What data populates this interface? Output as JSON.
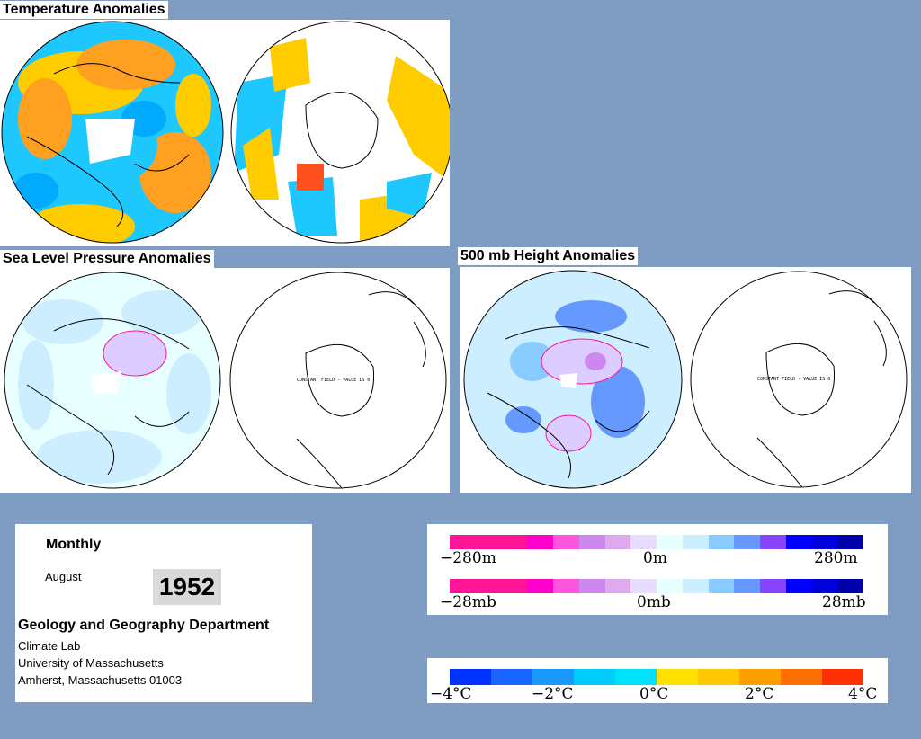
{
  "titles": {
    "temperature": "Temperature Anomalies",
    "slp": "Sea Level Pressure Anomalies",
    "height500": "500 mb Height Anomalies"
  },
  "map_notes": {
    "slp_south": "CONSTANT FIELD - VALUE IS 0",
    "height_south": "CONSTANT FIELD - VALUE IS 0"
  },
  "info": {
    "period": "Monthly",
    "month": "August",
    "year": "1952",
    "department": "Geology and Geography Department",
    "lab": "Climate Lab",
    "university": "University of Massachusetts",
    "address": "Amherst, Massachusetts 01003"
  },
  "legend_height": {
    "labels": [
      "−280m",
      "0m",
      "280m"
    ],
    "colors": [
      "#ff1493",
      "#ff1493",
      "#ff1493",
      "#ff00cc",
      "#ff55dd",
      "#cc88ee",
      "#ddaaee",
      "#e6ddff",
      "#e8ffff",
      "#cceeff",
      "#88ccff",
      "#6699ff",
      "#8844ff",
      "#0000ff",
      "#0000dd",
      "#0000aa"
    ]
  },
  "legend_pressure": {
    "labels": [
      "−28mb",
      "0mb",
      "28mb"
    ],
    "colors": [
      "#ff1493",
      "#ff1493",
      "#ff1493",
      "#ff00cc",
      "#ff55dd",
      "#cc88ee",
      "#ddaaee",
      "#e6ddff",
      "#e8ffff",
      "#cceeff",
      "#88ccff",
      "#6699ff",
      "#8844ff",
      "#0000ff",
      "#0000dd",
      "#0000aa"
    ]
  },
  "legend_temperature": {
    "labels": [
      "−4°C",
      "−2°C",
      "0°C",
      "2°C",
      "4°C"
    ],
    "colors": [
      "#0033ff",
      "#1a66ff",
      "#1a99ff",
      "#00ccff",
      "#00e0ff",
      "#ffe000",
      "#ffc800",
      "#ffa000",
      "#ff7000",
      "#ff3000"
    ]
  }
}
